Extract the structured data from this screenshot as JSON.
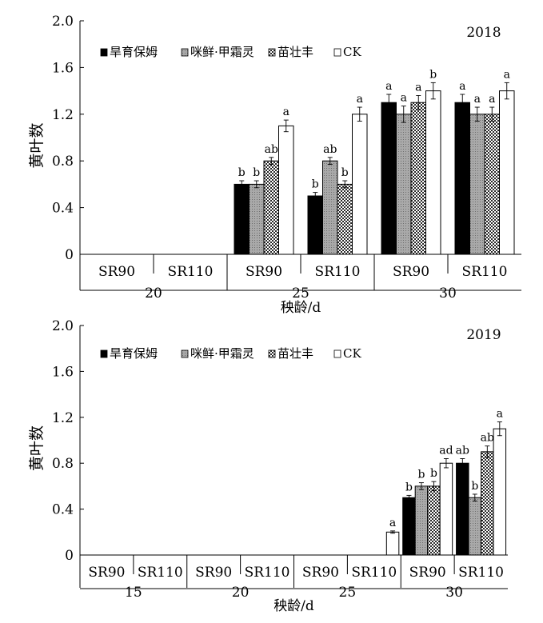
{
  "colors": {
    "旱育保姆": "#000000",
    "咪鲜·甲霜灵": "#a9a9a9",
    "苗壮丰": "#c8c8c8",
    "CK": "#ffffff",
    "axis": "#000000"
  },
  "chart_data": [
    {
      "type": "bar",
      "title": "2018",
      "ylabel": "黄叶数",
      "xlabel": "秧龄/d",
      "ylim": [
        0,
        2.0
      ],
      "yticks": [
        "0",
        "0.4",
        "0.8",
        "1.2",
        "1.6",
        "2.0"
      ],
      "yticks_values": [
        0,
        0.4,
        0.8,
        1.2,
        1.6,
        2.0
      ],
      "age_groups": [
        "20",
        "25",
        "30"
      ],
      "categories": [
        "SR90",
        "SR110",
        "SR90",
        "SR110",
        "SR90",
        "SR110"
      ],
      "legend": [
        "旱育保姆",
        "咪鲜·甲霜灵",
        "苗壮丰",
        "CK"
      ],
      "legend_position": "top-left",
      "series": [
        {
          "name": "旱育保姆",
          "values": [
            null,
            null,
            0.6,
            0.5,
            1.3,
            1.3
          ],
          "errors": [
            null,
            null,
            0.03,
            0.03,
            0.07,
            0.07
          ],
          "labels": [
            null,
            null,
            "b",
            "b",
            "a",
            "a"
          ]
        },
        {
          "name": "咪鲜·甲霜灵",
          "values": [
            null,
            null,
            0.6,
            0.8,
            1.2,
            1.2
          ],
          "errors": [
            null,
            null,
            0.03,
            0.03,
            0.07,
            0.06
          ],
          "labels": [
            null,
            null,
            "b",
            "ab",
            "a",
            "a"
          ]
        },
        {
          "name": "苗壮丰",
          "values": [
            null,
            null,
            0.8,
            0.6,
            1.3,
            1.2
          ],
          "errors": [
            null,
            null,
            0.03,
            0.03,
            0.06,
            0.06
          ],
          "labels": [
            null,
            null,
            "ab",
            "b",
            "a",
            "a"
          ]
        },
        {
          "name": "CK",
          "values": [
            null,
            null,
            1.1,
            1.2,
            1.4,
            1.4
          ],
          "errors": [
            null,
            null,
            0.05,
            0.06,
            0.07,
            0.07
          ],
          "labels": [
            null,
            null,
            "a",
            "a",
            "b",
            "a"
          ]
        }
      ]
    },
    {
      "type": "bar",
      "title": "2019",
      "ylabel": "黄叶数",
      "xlabel": "秧龄/d",
      "ylim": [
        0,
        2.0
      ],
      "yticks": [
        "0",
        "0.4",
        "0.8",
        "1.2",
        "1.6",
        "2.0"
      ],
      "yticks_values": [
        0,
        0.4,
        0.8,
        1.2,
        1.6,
        2.0
      ],
      "age_groups": [
        "15",
        "20",
        "25",
        "30"
      ],
      "categories": [
        "SR90",
        "SR110",
        "SR90",
        "SR110",
        "SR90",
        "SR110",
        "SR90",
        "SR110"
      ],
      "legend": [
        "旱育保姆",
        "咪鲜·甲霜灵",
        "苗壮丰",
        "CK"
      ],
      "legend_position": "top-left",
      "series": [
        {
          "name": "旱育保姆",
          "values": [
            null,
            null,
            null,
            null,
            null,
            null,
            0.5,
            0.8
          ],
          "errors": [
            null,
            null,
            null,
            null,
            null,
            null,
            0.02,
            0.04
          ],
          "labels": [
            null,
            null,
            null,
            null,
            null,
            null,
            "b",
            "ab"
          ]
        },
        {
          "name": "咪鲜·甲霜灵",
          "values": [
            null,
            null,
            null,
            null,
            null,
            null,
            0.6,
            0.5
          ],
          "errors": [
            null,
            null,
            null,
            null,
            null,
            null,
            0.03,
            0.03
          ],
          "labels": [
            null,
            null,
            null,
            null,
            null,
            null,
            "b",
            "b"
          ]
        },
        {
          "name": "苗壮丰",
          "values": [
            null,
            null,
            null,
            null,
            null,
            null,
            0.6,
            0.9
          ],
          "errors": [
            null,
            null,
            null,
            null,
            null,
            null,
            0.04,
            0.05
          ],
          "labels": [
            null,
            null,
            null,
            null,
            null,
            null,
            "b",
            "ab"
          ]
        },
        {
          "name": "CK",
          "values": [
            null,
            null,
            null,
            null,
            null,
            0.2,
            0.8,
            1.1
          ],
          "errors": [
            null,
            null,
            null,
            null,
            null,
            0.01,
            0.04,
            0.06
          ],
          "labels": [
            null,
            null,
            null,
            null,
            null,
            "a",
            "ad",
            "a"
          ]
        }
      ]
    }
  ]
}
